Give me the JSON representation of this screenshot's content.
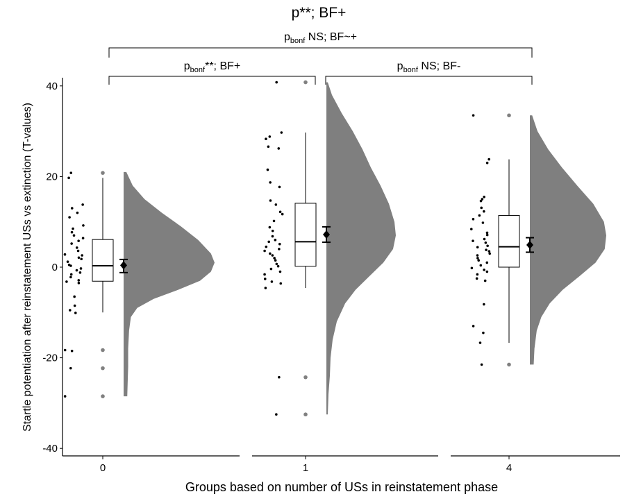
{
  "chart_data": {
    "type": "raincloud",
    "title": "p**; BF+",
    "xlabel": "Groups based on number of USs in reinstatement phase",
    "ylabel": "Startle potentiation after reinstatement USs vs extinction (T-values)",
    "ylim": [
      -40,
      42
    ],
    "yticks": [
      -40,
      -20,
      0,
      20,
      40
    ],
    "categories": [
      "0",
      "1",
      "4"
    ],
    "groups": [
      {
        "label": "0",
        "points": [
          20.8,
          19.7,
          13.8,
          13.0,
          12.0,
          11.0,
          9.2,
          8.5,
          7.7,
          7.0,
          6.4,
          5.8,
          5.2,
          4.3,
          3.6,
          2.8,
          2.6,
          2.1,
          1.8,
          1.2,
          0.5,
          0.3,
          -0.3,
          -0.7,
          -1.2,
          -1.6,
          -2.2,
          -2.9,
          -3.2,
          -3.5,
          -6.5,
          -8.5,
          -9.5,
          -10.1,
          -18.3,
          -18.5,
          -22.3,
          -28.5
        ],
        "box": {
          "q1": -3.1,
          "median": 0.3,
          "q3": 6.1,
          "whisker_low": -10.0,
          "whisker_high": 19.7
        },
        "outliers": [
          20.8,
          -18.3,
          -22.3,
          -28.5
        ],
        "mean": 0.4,
        "ci": [
          -1.2,
          1.7
        ],
        "density": [
          [
            21.0,
            0.03
          ],
          [
            18,
            0.1
          ],
          [
            15,
            0.23
          ],
          [
            12,
            0.42
          ],
          [
            9,
            0.63
          ],
          [
            6,
            0.82
          ],
          [
            3,
            0.96
          ],
          [
            1,
            1.0
          ],
          [
            -1,
            0.96
          ],
          [
            -3,
            0.84
          ],
          [
            -5,
            0.6
          ],
          [
            -7,
            0.33
          ],
          [
            -9,
            0.15
          ],
          [
            -11,
            0.08
          ],
          [
            -14,
            0.06
          ],
          [
            -18,
            0.05
          ],
          [
            -22,
            0.05
          ],
          [
            -28.5,
            0.04
          ]
        ]
      },
      {
        "label": "1",
        "points": [
          40.8,
          29.7,
          28.8,
          28.3,
          26.6,
          26.2,
          21.5,
          18.7,
          17.7,
          14.7,
          13.8,
          12.2,
          11.7,
          10.2,
          8.8,
          8.0,
          6.8,
          6.0,
          5.6,
          5.1,
          4.5,
          4.0,
          3.6,
          3.0,
          2.6,
          2.0,
          1.5,
          0.7,
          0.2,
          -0.4,
          -1.0,
          -1.6,
          -2.6,
          -3.2,
          -3.6,
          -4.6,
          -24.3,
          -32.5
        ],
        "box": {
          "q1": 0.2,
          "median": 5.6,
          "q3": 14.1,
          "whisker_low": -4.6,
          "whisker_high": 29.7
        },
        "outliers": [
          40.8,
          -24.3,
          -32.5
        ],
        "mean": 7.2,
        "ci": [
          5.5,
          8.9
        ],
        "density": [
          [
            40.8,
            0.02
          ],
          [
            38,
            0.08
          ],
          [
            34,
            0.22
          ],
          [
            30,
            0.38
          ],
          [
            26,
            0.52
          ],
          [
            22,
            0.64
          ],
          [
            18,
            0.78
          ],
          [
            14,
            0.9
          ],
          [
            10,
            0.98
          ],
          [
            7,
            1.0
          ],
          [
            4,
            0.96
          ],
          [
            1,
            0.82
          ],
          [
            -2,
            0.62
          ],
          [
            -5,
            0.42
          ],
          [
            -8,
            0.27
          ],
          [
            -12,
            0.15
          ],
          [
            -16,
            0.09
          ],
          [
            -20,
            0.06
          ],
          [
            -24,
            0.05
          ],
          [
            -28,
            0.03
          ],
          [
            -32.5,
            0.02
          ]
        ]
      },
      {
        "label": "4",
        "points": [
          33.5,
          23.8,
          23.0,
          15.5,
          15.0,
          14.6,
          13.1,
          12.3,
          11.4,
          10.6,
          9.8,
          8.4,
          7.6,
          7.1,
          6.2,
          5.8,
          5.4,
          4.7,
          4.4,
          3.8,
          3.5,
          3.0,
          2.6,
          2.0,
          1.5,
          1.0,
          0.4,
          -0.2,
          -0.6,
          -1.0,
          -1.6,
          -2.5,
          -3.0,
          -8.2,
          -13.0,
          -14.5,
          -16.7,
          -21.5
        ],
        "box": {
          "q1": 0.0,
          "median": 4.5,
          "q3": 11.4,
          "whisker_low": -16.7,
          "whisker_high": 23.8
        },
        "outliers": [
          33.5,
          -21.5
        ],
        "mean": 4.9,
        "ci": [
          3.3,
          6.5
        ],
        "density": [
          [
            33.5,
            0.03
          ],
          [
            30,
            0.1
          ],
          [
            26,
            0.24
          ],
          [
            22,
            0.42
          ],
          [
            18,
            0.62
          ],
          [
            14,
            0.83
          ],
          [
            10,
            0.97
          ],
          [
            7,
            1.0
          ],
          [
            4,
            0.98
          ],
          [
            1,
            0.86
          ],
          [
            -2,
            0.65
          ],
          [
            -5,
            0.43
          ],
          [
            -8,
            0.26
          ],
          [
            -11,
            0.15
          ],
          [
            -14,
            0.09
          ],
          [
            -18,
            0.06
          ],
          [
            -21.5,
            0.05
          ]
        ]
      }
    ],
    "comparisons": [
      {
        "from": "0",
        "to": "1",
        "label_main": "p",
        "label_sub": "bonf",
        "label_rest": "**; BF+"
      },
      {
        "from": "1",
        "to": "4",
        "label_main": "p",
        "label_sub": "bonf",
        "label_rest": " NS; BF-"
      },
      {
        "from": "0",
        "to": "4",
        "label_main": "p",
        "label_sub": "bonf",
        "label_rest": " NS; BF~+"
      }
    ],
    "colors": {
      "density": "#7f7f7f",
      "points": "#000000",
      "outliers": "#808080",
      "box": "#000000"
    }
  }
}
